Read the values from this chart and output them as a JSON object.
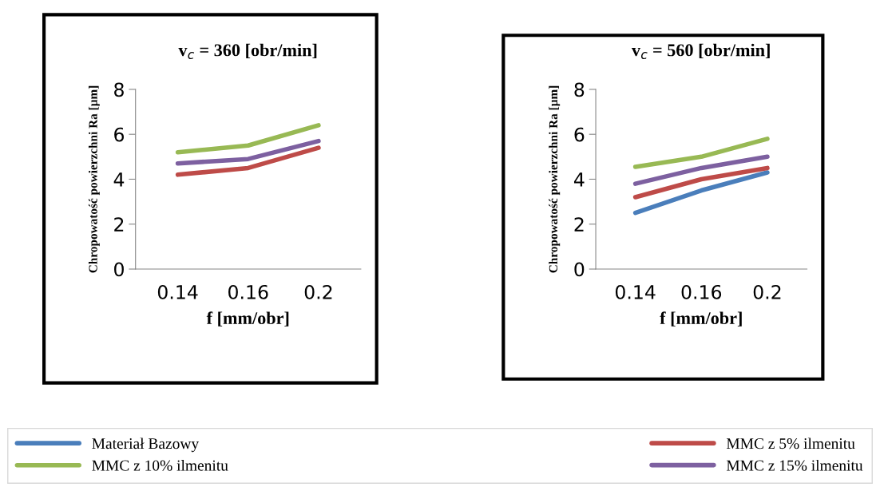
{
  "chart_data": [
    {
      "type": "line",
      "title": "v$_{c}$ = 360 [obr/min]",
      "xlabel": "f [mm/obr]",
      "ylabel": "Chropowatość powierzchni Ra [µm]",
      "categories": [
        "0.14",
        "0.16",
        "0.2"
      ],
      "ylim": [
        0,
        8
      ],
      "yticks": [
        0,
        2,
        4,
        6,
        8
      ],
      "grid": false,
      "marker": "none",
      "line_style": "solid",
      "series": [
        {
          "color": "#4a7ebb",
          "values": [
            null,
            null,
            null
          ]
        },
        {
          "color": "#be4b48",
          "values": [
            4.2,
            4.5,
            5.4
          ]
        },
        {
          "color": "#98b954",
          "values": [
            5.2,
            5.5,
            6.4
          ]
        },
        {
          "color": "#7d60a0",
          "values": [
            4.7,
            4.9,
            5.7
          ]
        }
      ]
    },
    {
      "type": "line",
      "title": "v$_{c}$ = 560 [obr/min]",
      "xlabel": "f [mm/obr]",
      "ylabel": "Chropowatość powierzchni Ra [µm]",
      "categories": [
        "0.14",
        "0.16",
        "0.2"
      ],
      "ylim": [
        0,
        8
      ],
      "yticks": [
        0,
        2,
        4,
        6,
        8
      ],
      "grid": false,
      "legend": "bottom",
      "marker": "none",
      "line_style": "solid",
      "series": [
        {
          "name": "Materiał Bazowy",
          "color": "#4a7ebb",
          "values": [
            2.5,
            3.5,
            4.3
          ]
        },
        {
          "name": "MMC z 5% ilmenitu",
          "color": "#be4b48",
          "values": [
            3.2,
            4.0,
            4.5
          ]
        },
        {
          "name": "MMC z 10% ilmenitu",
          "color": "#98b954",
          "values": [
            4.55,
            5.0,
            5.8
          ]
        },
        {
          "name": "MMC z 15% ilmenitu",
          "color": "#7d60a0",
          "values": [
            3.8,
            4.5,
            5.0
          ]
        }
      ]
    }
  ]
}
